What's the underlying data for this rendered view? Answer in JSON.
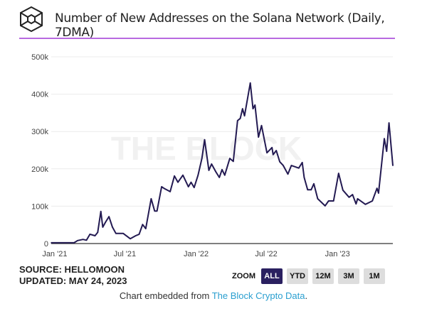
{
  "header": {
    "title": "Number of New Addresses on the Solana Network (Daily, 7DMA)",
    "logo": "the-block-cube-logo",
    "accent_color": "#b86ae0"
  },
  "chart_data": {
    "type": "line",
    "title": "Number of New Addresses on the Solana Network (Daily, 7DMA)",
    "xlabel": "",
    "ylabel": "",
    "ylim": [
      0,
      500000
    ],
    "xlim": [
      "2020-12-23",
      "2023-05-24"
    ],
    "grid": true,
    "line_color": "#231a52",
    "watermark": "THE BLOCK",
    "y_ticks": [
      {
        "value": 0,
        "label": "0"
      },
      {
        "value": 100000,
        "label": "100k"
      },
      {
        "value": 200000,
        "label": "200k"
      },
      {
        "value": 300000,
        "label": "300k"
      },
      {
        "value": 400000,
        "label": "400k"
      },
      {
        "value": 500000,
        "label": "500k"
      }
    ],
    "x_ticks": [
      {
        "date": "2021-01-01",
        "label": "Jan '21"
      },
      {
        "date": "2021-07-01",
        "label": "Jul '21"
      },
      {
        "date": "2022-01-01",
        "label": "Jan '22"
      },
      {
        "date": "2022-07-01",
        "label": "Jul '22"
      },
      {
        "date": "2023-01-01",
        "label": "Jan '23"
      }
    ],
    "series": [
      {
        "points": [
          [
            "2020-12-23",
            2000
          ],
          [
            "2021-02-20",
            2000
          ],
          [
            "2021-03-01",
            8000
          ],
          [
            "2021-03-15",
            11000
          ],
          [
            "2021-03-24",
            9000
          ],
          [
            "2021-04-02",
            25000
          ],
          [
            "2021-04-15",
            21000
          ],
          [
            "2021-04-22",
            30000
          ],
          [
            "2021-04-30",
            86000
          ],
          [
            "2021-05-05",
            44000
          ],
          [
            "2021-05-12",
            57000
          ],
          [
            "2021-05-21",
            72000
          ],
          [
            "2021-05-30",
            44000
          ],
          [
            "2021-06-08",
            27000
          ],
          [
            "2021-06-27",
            27000
          ],
          [
            "2021-07-15",
            13000
          ],
          [
            "2021-07-29",
            21000
          ],
          [
            "2021-08-07",
            25000
          ],
          [
            "2021-08-16",
            51000
          ],
          [
            "2021-08-24",
            40000
          ],
          [
            "2021-09-07",
            120000
          ],
          [
            "2021-09-16",
            87000
          ],
          [
            "2021-09-22",
            87000
          ],
          [
            "2021-10-04",
            152000
          ],
          [
            "2021-10-10",
            148000
          ],
          [
            "2021-10-26",
            139000
          ],
          [
            "2021-11-06",
            181000
          ],
          [
            "2021-11-15",
            164000
          ],
          [
            "2021-11-28",
            183000
          ],
          [
            "2021-12-12",
            152000
          ],
          [
            "2021-12-19",
            164000
          ],
          [
            "2021-12-27",
            150000
          ],
          [
            "2022-01-06",
            183000
          ],
          [
            "2022-01-16",
            228000
          ],
          [
            "2022-01-23",
            278000
          ],
          [
            "2022-02-03",
            196000
          ],
          [
            "2022-02-10",
            213000
          ],
          [
            "2022-02-21",
            192000
          ],
          [
            "2022-03-02",
            177000
          ],
          [
            "2022-03-09",
            198000
          ],
          [
            "2022-03-16",
            183000
          ],
          [
            "2022-03-29",
            228000
          ],
          [
            "2022-04-07",
            220000
          ],
          [
            "2022-04-18",
            329000
          ],
          [
            "2022-04-25",
            335000
          ],
          [
            "2022-05-01",
            361000
          ],
          [
            "2022-05-06",
            342000
          ],
          [
            "2022-05-21",
            430000
          ],
          [
            "2022-05-28",
            361000
          ],
          [
            "2022-06-02",
            371000
          ],
          [
            "2022-06-11",
            285000
          ],
          [
            "2022-06-19",
            316000
          ],
          [
            "2022-07-03",
            243000
          ],
          [
            "2022-07-16",
            257000
          ],
          [
            "2022-07-19",
            238000
          ],
          [
            "2022-07-27",
            249000
          ],
          [
            "2022-08-05",
            219000
          ],
          [
            "2022-08-14",
            209000
          ],
          [
            "2022-08-26",
            186000
          ],
          [
            "2022-09-04",
            209000
          ],
          [
            "2022-09-23",
            202000
          ],
          [
            "2022-10-02",
            217000
          ],
          [
            "2022-10-07",
            177000
          ],
          [
            "2022-10-16",
            144000
          ],
          [
            "2022-10-25",
            144000
          ],
          [
            "2022-11-01",
            160000
          ],
          [
            "2022-11-11",
            120000
          ],
          [
            "2022-11-30",
            101000
          ],
          [
            "2022-12-09",
            114000
          ],
          [
            "2022-12-22",
            114000
          ],
          [
            "2023-01-04",
            188000
          ],
          [
            "2023-01-15",
            143000
          ],
          [
            "2023-01-31",
            124000
          ],
          [
            "2023-02-09",
            131000
          ],
          [
            "2023-02-18",
            106000
          ],
          [
            "2023-02-22",
            120000
          ],
          [
            "2023-03-14",
            105000
          ],
          [
            "2023-04-01",
            114000
          ],
          [
            "2023-04-13",
            148000
          ],
          [
            "2023-04-17",
            135000
          ],
          [
            "2023-05-02",
            281000
          ],
          [
            "2023-05-08",
            247000
          ],
          [
            "2023-05-14",
            323000
          ],
          [
            "2023-05-24",
            209000
          ]
        ]
      }
    ]
  },
  "footer": {
    "source": "SOURCE: HELLOMOON",
    "updated": "UPDATED: MAY 24, 2023",
    "zoom_label": "ZOOM",
    "zoom_buttons": [
      "ALL",
      "YTD",
      "12M",
      "3M",
      "1M"
    ],
    "active_zoom": "ALL",
    "embed_prefix": "Chart embedded from ",
    "embed_link": "The Block Crypto Data",
    "embed_suffix": ".",
    "link_color": "#2a9fd0"
  }
}
